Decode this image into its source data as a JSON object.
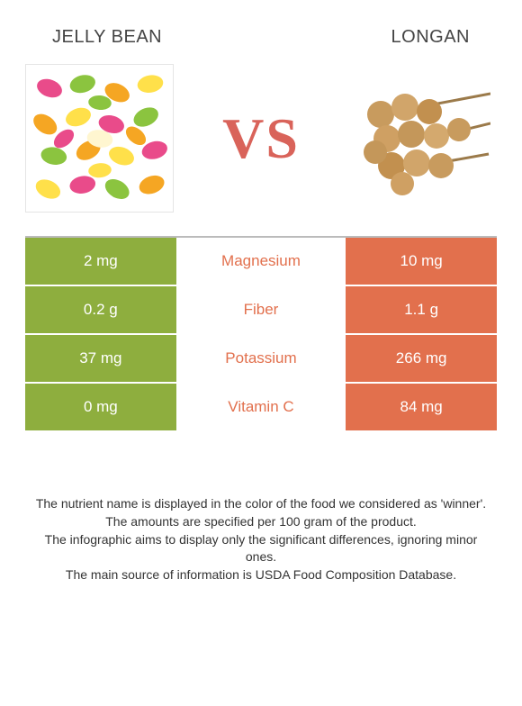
{
  "left": {
    "title": "Jelly bean",
    "color": "#8eae3e"
  },
  "right": {
    "title": "Longan",
    "color": "#e2704d"
  },
  "vs": "VS",
  "winner_text_color": "#e2704d",
  "nutrients": [
    {
      "name": "Magnesium",
      "left": "2 mg",
      "right": "10 mg",
      "winner": "right"
    },
    {
      "name": "Fiber",
      "left": "0.2 g",
      "right": "1.1 g",
      "winner": "right"
    },
    {
      "name": "Potassium",
      "left": "37 mg",
      "right": "266 mg",
      "winner": "right"
    },
    {
      "name": "Vitamin C",
      "left": "0 mg",
      "right": "84 mg",
      "winner": "right"
    }
  ],
  "footer": {
    "l1": "The nutrient name is displayed in the color of the food we considered as 'winner'.",
    "l2": "The amounts are specified per 100 gram of the product.",
    "l3": "The infographic aims to display only the significant differences, ignoring minor ones.",
    "l4": "The main source of information is USDA Food Composition Database."
  }
}
